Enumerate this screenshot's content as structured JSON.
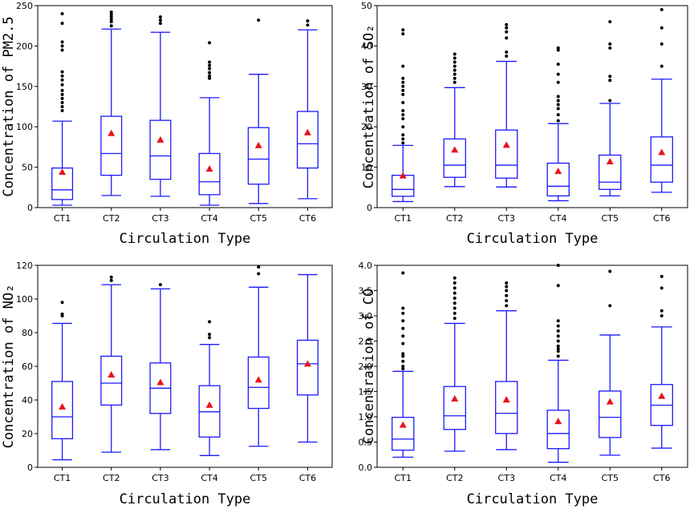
{
  "colors": {
    "box": "#1a1aff",
    "mean": "#e8141c",
    "outlier": "#000000",
    "axis": "#000000"
  },
  "chart_data": [
    {
      "type": "box",
      "title": "",
      "xlabel": "Circulation Type",
      "ylabel": "Concentration of PM2.5",
      "ylim": [
        0,
        250
      ],
      "yticks": [
        0,
        50,
        100,
        150,
        200,
        250
      ],
      "categories": [
        "CT1",
        "CT2",
        "CT3",
        "CT4",
        "CT5",
        "CT6"
      ],
      "boxes": [
        {
          "min": 3,
          "q1": 10,
          "median": 22,
          "q3": 49,
          "max": 107,
          "mean": 44,
          "outliers": [
            120,
            125,
            130,
            135,
            140,
            145,
            152,
            158,
            163,
            168,
            195,
            200,
            205,
            228,
            240
          ]
        },
        {
          "min": 15,
          "q1": 40,
          "median": 67,
          "q3": 113,
          "max": 221,
          "mean": 92,
          "outliers": [
            225,
            230,
            233,
            236,
            239,
            242
          ]
        },
        {
          "min": 14,
          "q1": 35,
          "median": 64,
          "q3": 108,
          "max": 217,
          "mean": 84,
          "outliers": [
            228,
            232,
            236
          ]
        },
        {
          "min": 3,
          "q1": 16,
          "median": 32,
          "q3": 67,
          "max": 136,
          "mean": 48,
          "outliers": [
            160,
            163,
            167,
            172,
            176,
            180,
            204
          ]
        },
        {
          "min": 5,
          "q1": 29,
          "median": 60,
          "q3": 99,
          "max": 165,
          "mean": 77,
          "outliers": [
            232
          ]
        },
        {
          "min": 11,
          "q1": 49,
          "median": 79,
          "q3": 119,
          "max": 220,
          "mean": 93,
          "outliers": [
            226,
            231
          ]
        }
      ]
    },
    {
      "type": "box",
      "title": "",
      "xlabel": "Circulation Type",
      "ylabel": "Concentration of SO₂",
      "ylim": [
        0,
        50
      ],
      "yticks": [
        0,
        10,
        20,
        30,
        40,
        50
      ],
      "categories": [
        "CT1",
        "CT2",
        "CT3",
        "CT4",
        "CT5",
        "CT6"
      ],
      "boxes": [
        {
          "min": 1.5,
          "q1": 2.8,
          "median": 4.5,
          "q3": 8,
          "max": 15.4,
          "mean": 7.9,
          "outliers": [
            16,
            17,
            18,
            20,
            22,
            23,
            24,
            26,
            28,
            29,
            30,
            31,
            32,
            35,
            43,
            44
          ]
        },
        {
          "min": 5.2,
          "q1": 7.5,
          "median": 10.5,
          "q3": 17,
          "max": 29.7,
          "mean": 14.3,
          "outliers": [
            31,
            32,
            33,
            34,
            35,
            36,
            37,
            38
          ]
        },
        {
          "min": 5.1,
          "q1": 7.3,
          "median": 10.5,
          "q3": 19.2,
          "max": 36.2,
          "mean": 15.5,
          "outliers": [
            37.5,
            38.5,
            42,
            43.5,
            44.5,
            45.3
          ]
        },
        {
          "min": 1.7,
          "q1": 2.9,
          "median": 5.3,
          "q3": 11,
          "max": 20.8,
          "mean": 9,
          "outliers": [
            21.5,
            23,
            24.5,
            25.5,
            26.5,
            27.5,
            31,
            33,
            35.5,
            39,
            39.5
          ]
        },
        {
          "min": 2.9,
          "q1": 4.5,
          "median": 6.3,
          "q3": 13,
          "max": 25.8,
          "mean": 11.4,
          "outliers": [
            26.5,
            31.5,
            32.5,
            39.5,
            40.5,
            46
          ]
        },
        {
          "min": 3.8,
          "q1": 6.3,
          "median": 10.5,
          "q3": 17.5,
          "max": 31.8,
          "mean": 13.7,
          "outliers": [
            35,
            40.5,
            44.5,
            49
          ]
        }
      ]
    },
    {
      "type": "box",
      "title": "",
      "xlabel": "Circulation Type",
      "ylabel": "Concentration of NO₂",
      "ylim": [
        0,
        120
      ],
      "yticks": [
        0,
        20,
        40,
        60,
        80,
        100,
        120
      ],
      "categories": [
        "CT1",
        "CT2",
        "CT3",
        "CT4",
        "CT5",
        "CT6"
      ],
      "boxes": [
        {
          "min": 4.5,
          "q1": 17,
          "median": 30,
          "q3": 51,
          "max": 85.5,
          "mean": 36,
          "outliers": [
            90,
            91,
            98
          ]
        },
        {
          "min": 9,
          "q1": 37,
          "median": 50,
          "q3": 66,
          "max": 108.5,
          "mean": 55,
          "outliers": [
            111,
            113
          ]
        },
        {
          "min": 10.5,
          "q1": 32,
          "median": 47,
          "q3": 62,
          "max": 106,
          "mean": 50.5,
          "outliers": [
            108.5
          ]
        },
        {
          "min": 7,
          "q1": 18,
          "median": 33,
          "q3": 48.5,
          "max": 73,
          "mean": 37,
          "outliers": [
            77,
            79,
            86.5
          ]
        },
        {
          "min": 12.5,
          "q1": 35,
          "median": 47.5,
          "q3": 65.5,
          "max": 107,
          "mean": 52,
          "outliers": [
            115,
            119
          ]
        },
        {
          "min": 15,
          "q1": 43,
          "median": 61.5,
          "q3": 75.5,
          "max": 114.5,
          "mean": 61.5,
          "outliers": []
        }
      ]
    },
    {
      "type": "box",
      "title": "",
      "xlabel": "Circulation Type",
      "ylabel": "Concentration of CO",
      "ylim": [
        0,
        4.0
      ],
      "yticks": [
        0.0,
        0.5,
        1.0,
        1.5,
        2.0,
        2.5,
        3.0,
        3.5,
        4.0
      ],
      "categories": [
        "CT1",
        "CT2",
        "CT3",
        "CT4",
        "CT5",
        "CT6"
      ],
      "boxes": [
        {
          "min": 0.2,
          "q1": 0.34,
          "median": 0.56,
          "q3": 0.99,
          "max": 1.9,
          "mean": 0.84,
          "outliers": [
            1.95,
            2.0,
            2.1,
            2.2,
            2.25,
            2.45,
            2.6,
            2.75,
            2.9,
            3.05,
            3.15,
            3.85
          ]
        },
        {
          "min": 0.32,
          "q1": 0.75,
          "median": 1.02,
          "q3": 1.6,
          "max": 2.85,
          "mean": 1.36,
          "outliers": [
            2.95,
            3.05,
            3.15,
            3.25,
            3.35,
            3.45,
            3.55,
            3.65,
            3.75
          ]
        },
        {
          "min": 0.35,
          "q1": 0.67,
          "median": 1.07,
          "q3": 1.7,
          "max": 3.1,
          "mean": 1.34,
          "outliers": [
            3.2,
            3.3,
            3.4,
            3.5,
            3.58,
            3.65
          ]
        },
        {
          "min": 0.1,
          "q1": 0.37,
          "median": 0.67,
          "q3": 1.13,
          "max": 2.12,
          "mean": 0.91,
          "outliers": [
            2.2,
            2.3,
            2.35,
            2.4,
            2.5,
            2.6,
            2.7,
            2.8,
            2.9,
            3.6,
            4.0
          ]
        },
        {
          "min": 0.24,
          "q1": 0.59,
          "median": 0.99,
          "q3": 1.51,
          "max": 2.62,
          "mean": 1.3,
          "outliers": [
            3.2,
            3.88
          ]
        },
        {
          "min": 0.38,
          "q1": 0.83,
          "median": 1.23,
          "q3": 1.64,
          "max": 2.78,
          "mean": 1.41,
          "outliers": [
            3.0,
            3.1,
            3.55,
            3.78
          ]
        }
      ]
    }
  ]
}
